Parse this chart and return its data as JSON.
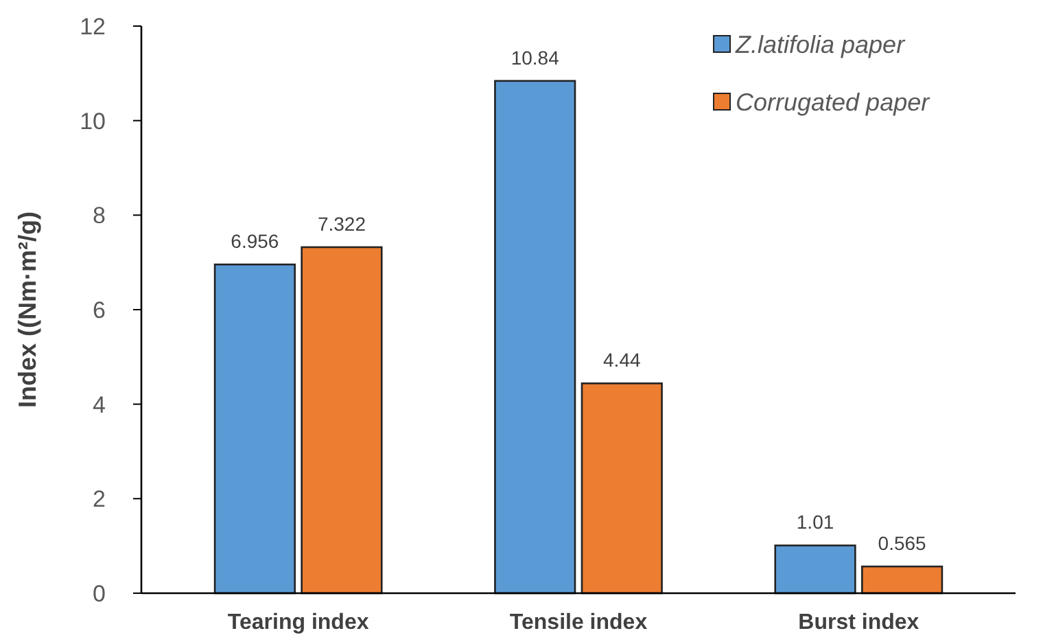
{
  "chart_data": {
    "type": "bar",
    "ylabel": "Index ((Nm·m²/g)",
    "categories": [
      "Tearing index",
      "Tensile index",
      "Burst index"
    ],
    "series": [
      {
        "name": "Z.latifolia paper",
        "color": "#5b9bd5",
        "values": [
          6.956,
          10.84,
          1.01
        ]
      },
      {
        "name": "Corrugated paper",
        "color": "#ed7d31",
        "values": [
          7.322,
          4.44,
          0.565
        ]
      }
    ],
    "ylim": [
      0,
      12
    ],
    "yticks": [
      0,
      2,
      4,
      6,
      8,
      10,
      12
    ],
    "grid": false,
    "legend": "top right",
    "data_labels": true
  }
}
